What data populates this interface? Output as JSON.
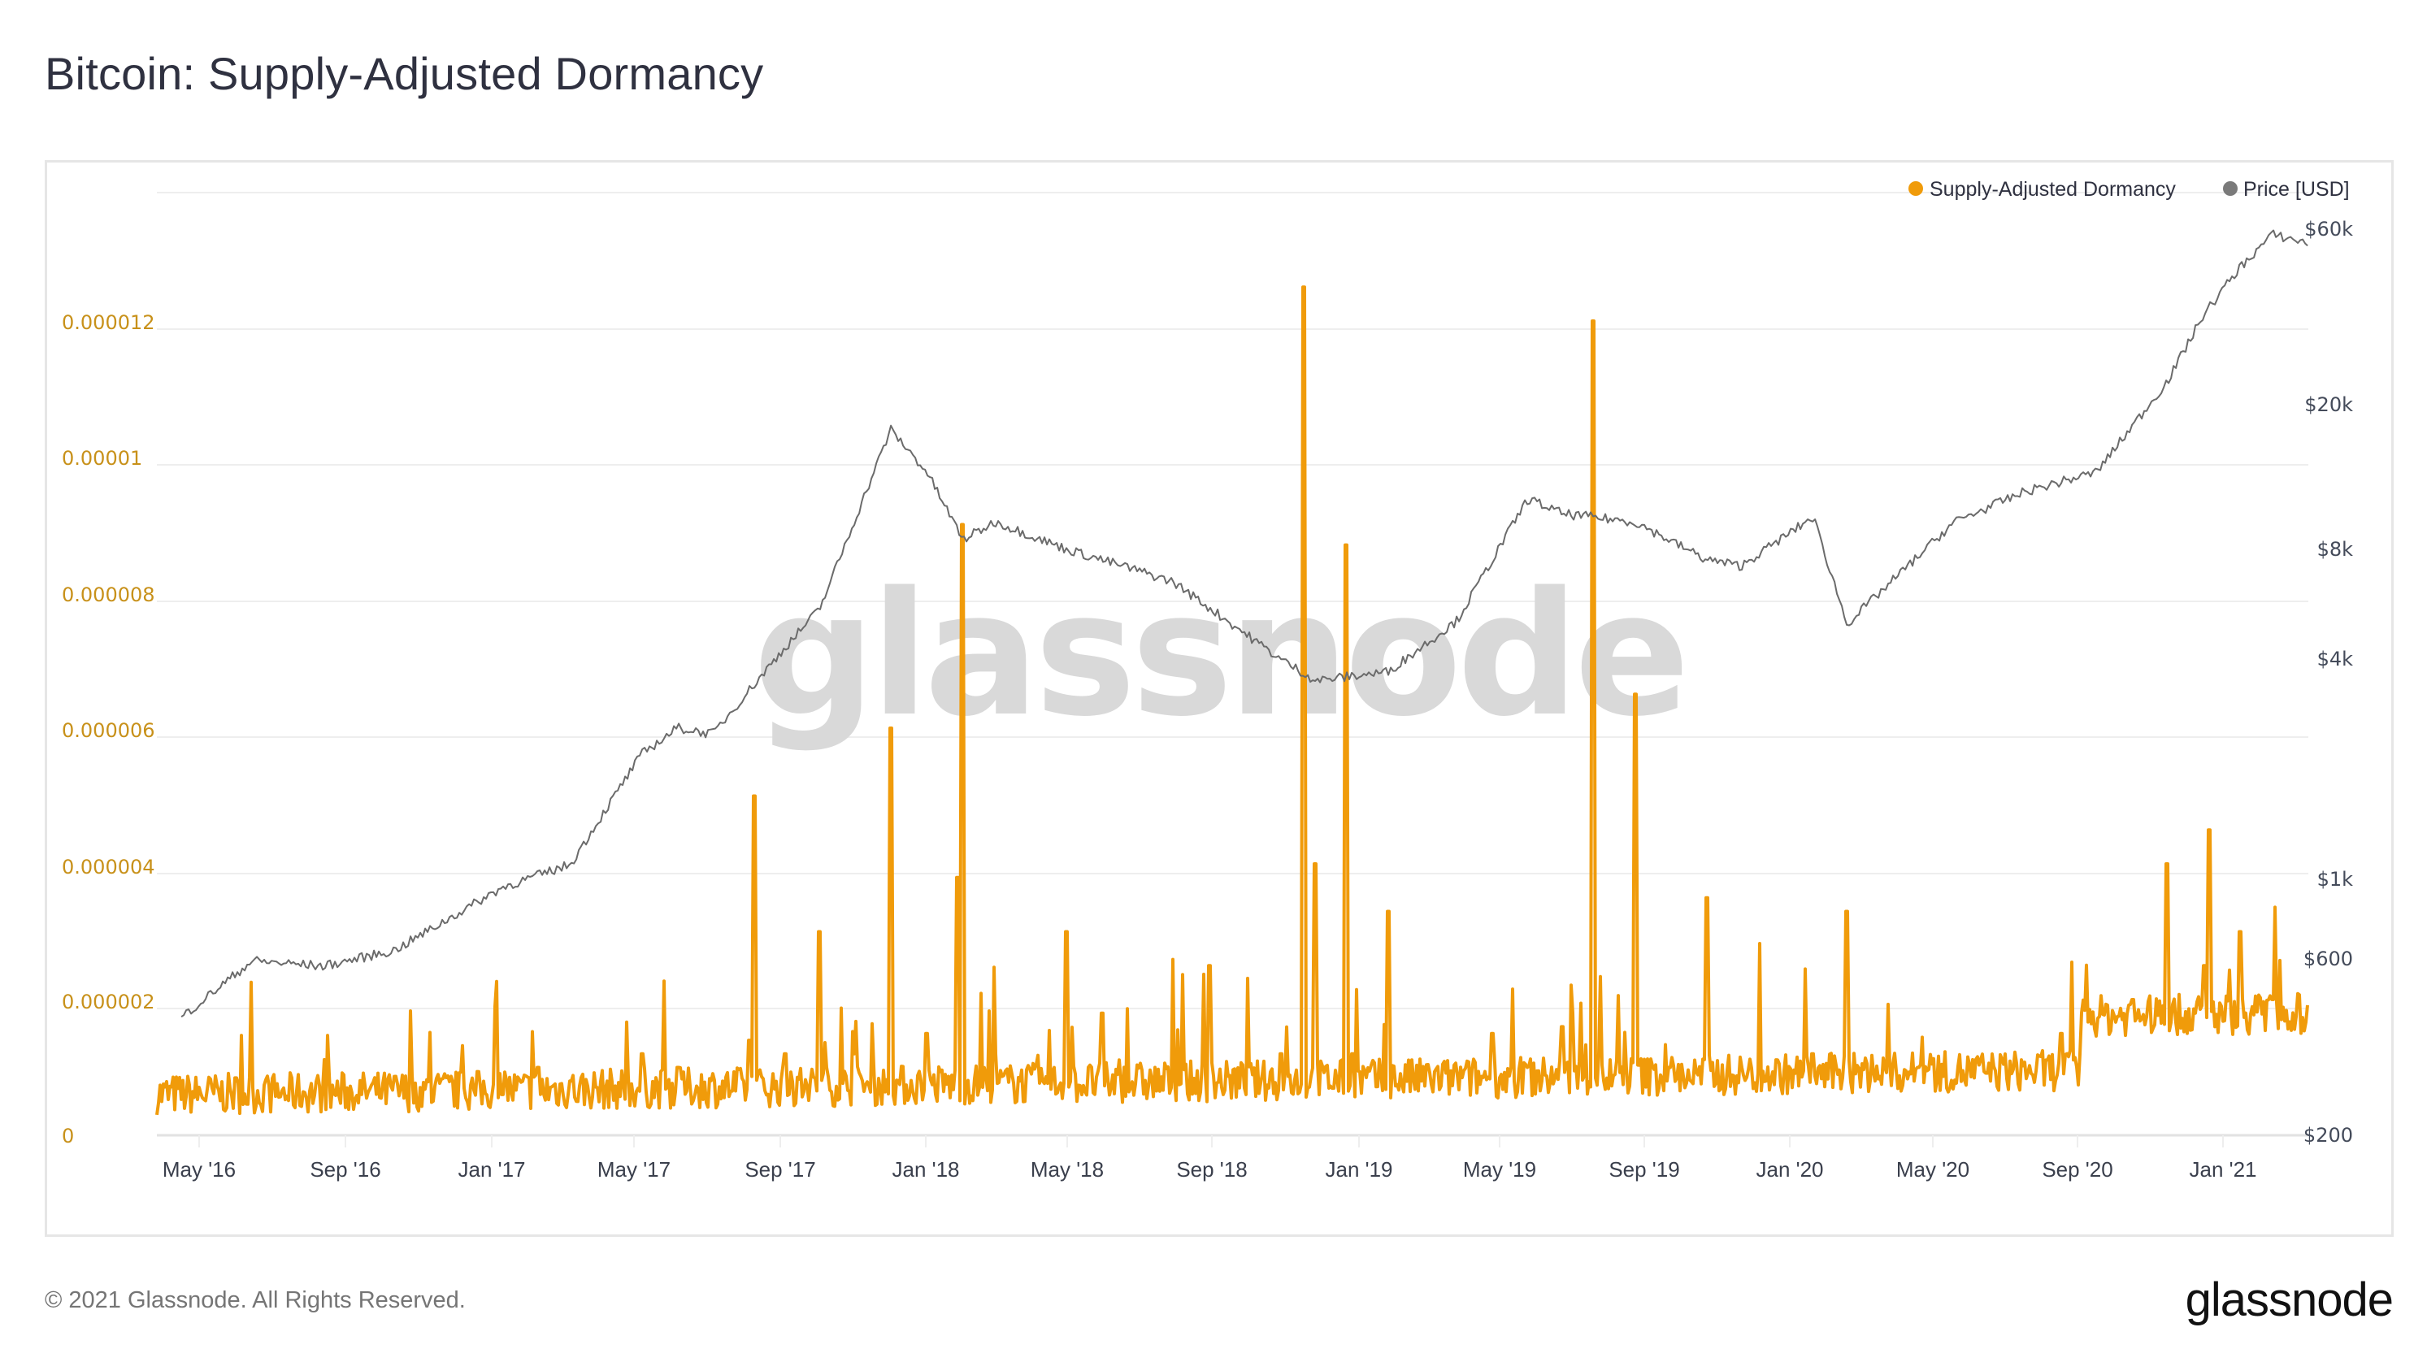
{
  "header": {
    "title": "Bitcoin: Supply-Adjusted Dormancy"
  },
  "footer": {
    "copyright": "© 2021 Glassnode. All Rights Reserved.",
    "logo": "glassnode"
  },
  "watermark": "glassnode",
  "legend": [
    {
      "label": "Supply-Adjusted Dormancy",
      "color": "#f09b0a"
    },
    {
      "label": "Price [USD]",
      "color": "#7a7a7a"
    }
  ],
  "colors": {
    "dormancy": "#f09b0a",
    "price": "#6b6b6b",
    "grid": "#eeeeee",
    "left_axis": "#c8911a"
  },
  "chart_data": {
    "type": "line",
    "title": "Bitcoin: Supply-Adjusted Dormancy",
    "xlabel": "",
    "ylabel": "Supply-Adjusted Dormancy",
    "y2label": "Price [USD]",
    "legend_position": "top-right",
    "grid": true,
    "ylim": [
      0,
      1.3e-05
    ],
    "y2_scale": "log",
    "y2lim": [
      200,
      60000
    ],
    "x_ticks": [
      "May '16",
      "Sep '16",
      "Jan '17",
      "May '17",
      "Sep '17",
      "Jan '18",
      "May '18",
      "Sep '18",
      "Jan '19",
      "May '19",
      "Sep '19",
      "Jan '20",
      "May '20",
      "Sep '20",
      "Jan '21"
    ],
    "y_ticks_left": [
      "0",
      "0.000002",
      "0.000004",
      "0.000006",
      "0.000008",
      "0.00001",
      "0.000012"
    ],
    "y_ticks_left_values": [
      0,
      2e-06,
      4e-06,
      6e-06,
      8e-06,
      1e-05,
      1.2e-05
    ],
    "y_ticks_right": [
      "$200",
      "$600",
      "$1k",
      "$4k",
      "$8k",
      "$20k",
      "$60k"
    ],
    "y_ticks_right_values": [
      200,
      600,
      1000,
      4000,
      8000,
      20000,
      60000
    ],
    "series": [
      {
        "name": "Supply-Adjusted Dormancy",
        "axis": "left",
        "x": [
          "2016-04",
          "2016-06",
          "2016-08",
          "2016-10",
          "2016-12",
          "2017-01",
          "2017-02",
          "2017-03",
          "2017-05",
          "2017-06",
          "2017-08",
          "2017-08-20",
          "2017-09",
          "2017-10",
          "2017-11",
          "2017-12",
          "2018-01",
          "2018-02",
          "2018-02-10",
          "2018-03",
          "2018-05",
          "2018-06",
          "2018-08",
          "2018-09",
          "2018-10",
          "2018-11",
          "2018-12",
          "2018-12-05",
          "2019-01",
          "2019-01-10",
          "2019-02",
          "2019-03",
          "2019-05",
          "2019-06",
          "2019-07",
          "2019-08",
          "2019-08-10",
          "2019-09",
          "2019-10",
          "2019-11",
          "2019-12",
          "2020-02",
          "2020-03",
          "2020-05",
          "2020-07",
          "2020-09",
          "2020-11",
          "2020-12",
          "2021-01",
          "2021-01-20",
          "2021-02",
          "2021-03",
          "2021-04"
        ],
        "values": [
          3e-07,
          4e-07,
          5e-07,
          4e-07,
          2e-07,
          6e-07,
          1e-06,
          8e-07,
          1.2e-06,
          1e-06,
          1.4e-06,
          5e-06,
          1.2e-06,
          3e-06,
          1.2e-06,
          6e-06,
          1.5e-06,
          9e-06,
          3.8e-06,
          1.2e-06,
          3e-06,
          1.8e-06,
          8e-07,
          2.5e-06,
          6e-07,
          1.2e-06,
          4e-06,
          1.25e-05,
          1.2e-06,
          8.7e-06,
          3.3e-06,
          8e-07,
          1.5e-06,
          1e-06,
          1.6e-06,
          1.2e-06,
          1.2e-05,
          6.5e-06,
          1e-06,
          3.5e-06,
          1e-06,
          1.2e-06,
          3.3e-06,
          1e-06,
          8e-07,
          1.5e-06,
          2e-06,
          4e-06,
          2.5e-06,
          4.5e-06,
          3e-06,
          2e-06,
          1.5e-06
        ]
      },
      {
        "name": "Price [USD]",
        "axis": "right",
        "x": [
          "2016-04",
          "2016-06",
          "2016-08",
          "2016-10",
          "2017-01",
          "2017-03",
          "2017-05",
          "2017-06",
          "2017-07",
          "2017-09",
          "2017-10",
          "2017-12",
          "2018-01",
          "2018-02",
          "2018-03",
          "2018-05",
          "2018-07",
          "2018-08",
          "2018-11",
          "2018-12",
          "2019-02",
          "2019-04",
          "2019-06",
          "2019-07",
          "2019-09",
          "2019-11",
          "2019-12",
          "2020-02",
          "2020-03",
          "2020-06",
          "2020-08",
          "2020-10",
          "2020-12",
          "2021-01",
          "2021-02",
          "2021-03",
          "2021-04"
        ],
        "values": [
          420,
          600,
          580,
          640,
          950,
          1100,
          2200,
          2600,
          2500,
          4300,
          5500,
          17000,
          13000,
          8500,
          9500,
          8000,
          7000,
          6500,
          4000,
          3500,
          3700,
          5100,
          11000,
          10000,
          9500,
          7500,
          7200,
          9800,
          5000,
          9500,
          11500,
          13000,
          23000,
          35000,
          47000,
          58000,
          55000
        ]
      }
    ]
  }
}
